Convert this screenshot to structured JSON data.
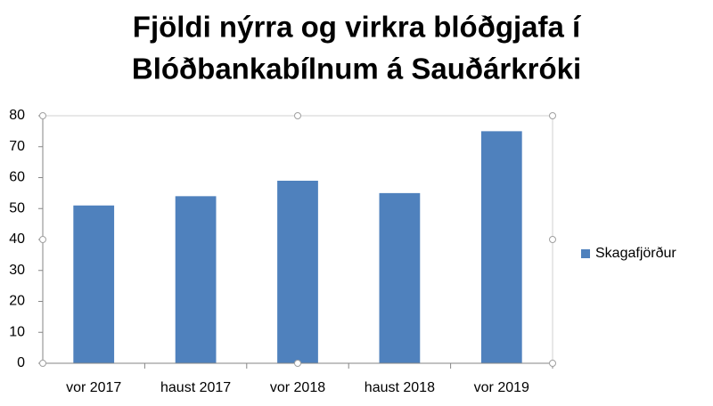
{
  "chart_data": {
    "type": "bar",
    "title": [
      "Fjöldi nýrra og virkra blóðgjafa í",
      "Blóðbankabílnum á Sauðárkróki"
    ],
    "categories": [
      "vor 2017",
      "haust 2017",
      "vor 2018",
      "haust 2018",
      "vor 2019"
    ],
    "series": [
      {
        "name": "Skagafjörður",
        "color": "#4f81bd",
        "values": [
          51,
          54,
          59,
          55,
          75
        ]
      }
    ],
    "ylim": [
      0,
      80
    ],
    "yticks": [
      0,
      10,
      20,
      30,
      40,
      50,
      60,
      70,
      80
    ],
    "grid": false,
    "legend": "right"
  }
}
